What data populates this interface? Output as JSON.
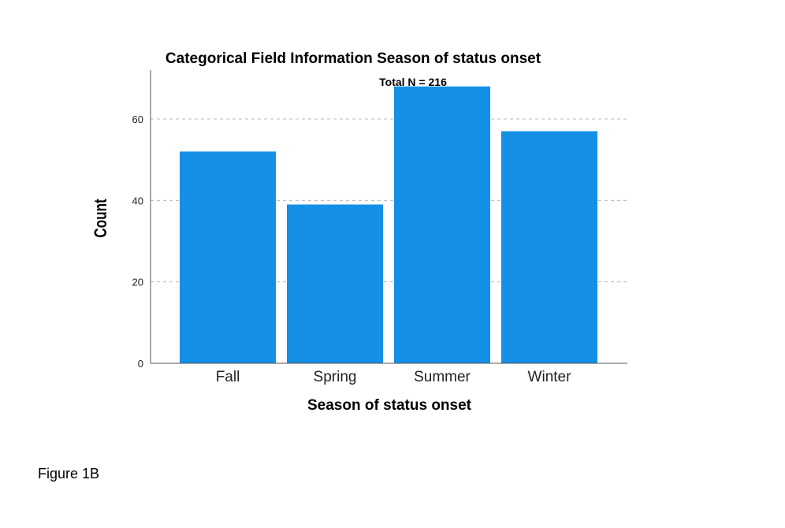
{
  "chart_data": {
    "type": "bar",
    "title": "Categorical Field Information Season of status onset",
    "subtitle": "Total N =  216",
    "xlabel": "Season of status onset",
    "ylabel": "Count",
    "categories": [
      "Fall",
      "Spring",
      "Summer",
      "Winter"
    ],
    "values": [
      52,
      39,
      68,
      57
    ],
    "ylim": [
      0,
      72
    ],
    "yticks": [
      0,
      20,
      40,
      60
    ],
    "grid": true,
    "bar_color": "#1490e6"
  },
  "caption": "Figure 1B"
}
